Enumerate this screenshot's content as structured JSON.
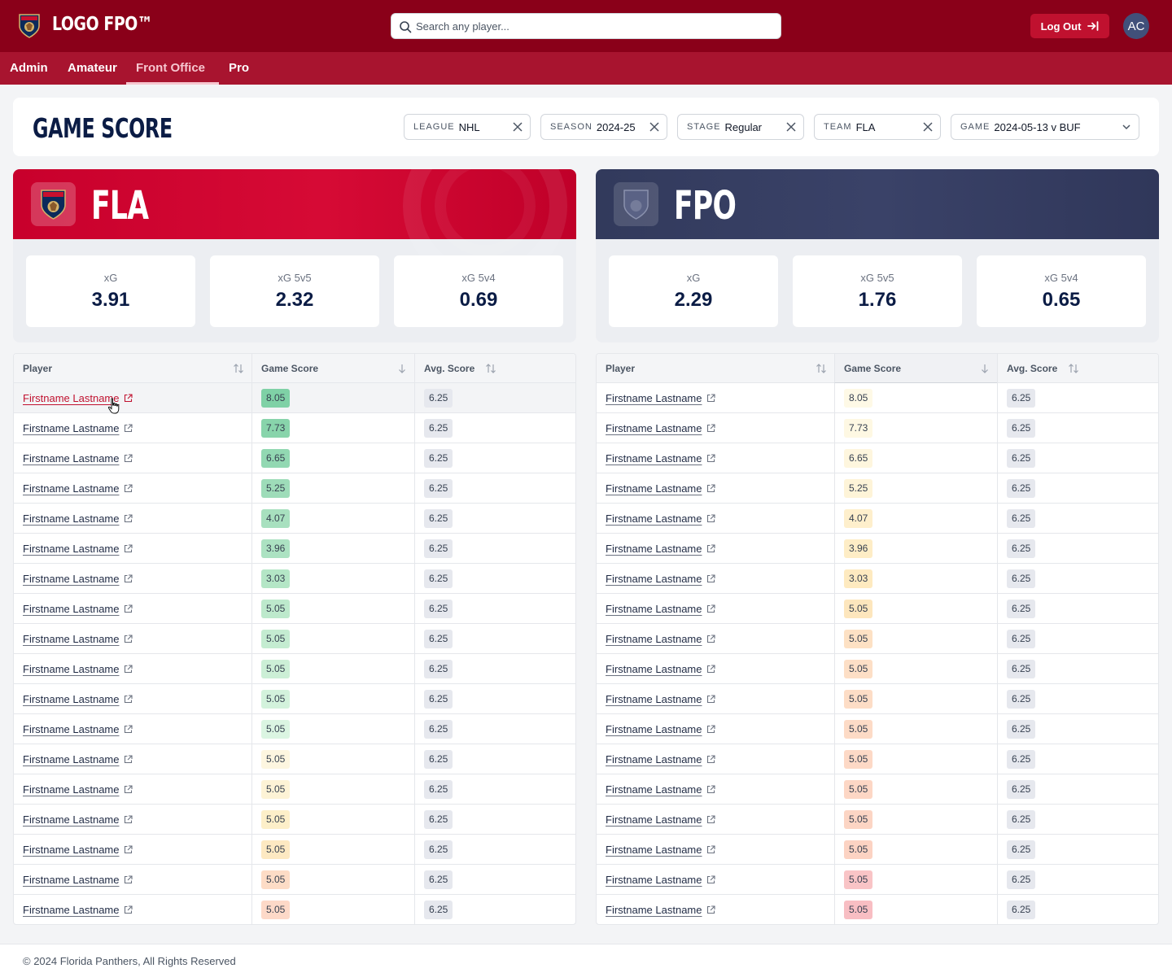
{
  "app": {
    "logo_text": "LOGO FPO™",
    "search_placeholder": "Search any player...",
    "logout_label": "Log Out",
    "avatar_initials": "AC"
  },
  "nav": {
    "items": [
      "Admin",
      "Amateur",
      "Front Office",
      "Pro"
    ],
    "active": "Front Office"
  },
  "page": {
    "title": "GAME SCORE",
    "filters": [
      {
        "label": "LEAGUE",
        "value": "NHL",
        "type": "clearable"
      },
      {
        "label": "SEASON",
        "value": "2024-25",
        "type": "clearable"
      },
      {
        "label": "STAGE",
        "value": "Regular",
        "type": "clearable"
      },
      {
        "label": "TEAM",
        "value": "FLA",
        "type": "clearable"
      },
      {
        "label": "GAME",
        "value": "2024-05-13 v BUF",
        "type": "dropdown"
      }
    ]
  },
  "teams": [
    {
      "name": "FLA",
      "theme": "red",
      "stats": [
        {
          "label": "xG",
          "value": "3.91"
        },
        {
          "label": "xG 5v5",
          "value": "2.32"
        },
        {
          "label": "xG 5v4",
          "value": "0.69"
        }
      ]
    },
    {
      "name": "FPO",
      "theme": "navy",
      "stats": [
        {
          "label": "xG",
          "value": "2.29"
        },
        {
          "label": "xG 5v5",
          "value": "1.76"
        },
        {
          "label": "xG 5v4",
          "value": "0.65"
        }
      ]
    }
  ],
  "table": {
    "columns": [
      "Player",
      "Game Score",
      "Avg. Score"
    ],
    "sorted_column": "Game Score",
    "left_rows": [
      {
        "player": "Firstname Lastname",
        "game_score": "8.05",
        "avg_score": "6.25",
        "color": "#7fd1a6"
      },
      {
        "player": "Firstname Lastname",
        "game_score": "7.73",
        "avg_score": "6.25",
        "color": "#88d4ab"
      },
      {
        "player": "Firstname Lastname",
        "game_score": "6.65",
        "avg_score": "6.25",
        "color": "#92d8b2"
      },
      {
        "player": "Firstname Lastname",
        "game_score": "5.25",
        "avg_score": "6.25",
        "color": "#9edcb9"
      },
      {
        "player": "Firstname Lastname",
        "game_score": "4.07",
        "avg_score": "6.25",
        "color": "#a8e0bf"
      },
      {
        "player": "Firstname Lastname",
        "game_score": "3.96",
        "avg_score": "6.25",
        "color": "#ace2c2"
      },
      {
        "player": "Firstname Lastname",
        "game_score": "3.03",
        "avg_score": "6.25",
        "color": "#b4e6c6"
      },
      {
        "player": "Firstname Lastname",
        "game_score": "5.05",
        "avg_score": "6.25",
        "color": "#bde9cc"
      },
      {
        "player": "Firstname Lastname",
        "game_score": "5.05",
        "avg_score": "6.25",
        "color": "#c4ecd1"
      },
      {
        "player": "Firstname Lastname",
        "game_score": "5.05",
        "avg_score": "6.25",
        "color": "#ccefd6"
      },
      {
        "player": "Firstname Lastname",
        "game_score": "5.05",
        "avg_score": "6.25",
        "color": "#d3f2dc"
      },
      {
        "player": "Firstname Lastname",
        "game_score": "5.05",
        "avg_score": "6.25",
        "color": "#dbf5e2"
      },
      {
        "player": "Firstname Lastname",
        "game_score": "5.05",
        "avg_score": "6.25",
        "color": "#fdf6e0"
      },
      {
        "player": "Firstname Lastname",
        "game_score": "5.05",
        "avg_score": "6.25",
        "color": "#fdf3d6"
      },
      {
        "player": "Firstname Lastname",
        "game_score": "5.05",
        "avg_score": "6.25",
        "color": "#fdefc9"
      },
      {
        "player": "Firstname Lastname",
        "game_score": "5.05",
        "avg_score": "6.25",
        "color": "#fde9c2"
      },
      {
        "player": "Firstname Lastname",
        "game_score": "5.05",
        "avg_score": "6.25",
        "color": "#fddcc6"
      },
      {
        "player": "Firstname Lastname",
        "game_score": "5.05",
        "avg_score": "6.25",
        "color": "#fdd9c8"
      }
    ],
    "right_rows": [
      {
        "player": "Firstname Lastname",
        "game_score": "8.05",
        "avg_score": "6.25",
        "color": "#fef9e6"
      },
      {
        "player": "Firstname Lastname",
        "game_score": "7.73",
        "avg_score": "6.25",
        "color": "#fef8e3"
      },
      {
        "player": "Firstname Lastname",
        "game_score": "6.65",
        "avg_score": "6.25",
        "color": "#fef6de"
      },
      {
        "player": "Firstname Lastname",
        "game_score": "5.25",
        "avg_score": "6.25",
        "color": "#fef4d8"
      },
      {
        "player": "Firstname Lastname",
        "game_score": "4.07",
        "avg_score": "6.25",
        "color": "#feefcc"
      },
      {
        "player": "Firstname Lastname",
        "game_score": "3.96",
        "avg_score": "6.25",
        "color": "#feedc6"
      },
      {
        "player": "Firstname Lastname",
        "game_score": "3.03",
        "avg_score": "6.25",
        "color": "#feeac0"
      },
      {
        "player": "Firstname Lastname",
        "game_score": "5.05",
        "avg_score": "6.25",
        "color": "#fde6bd"
      },
      {
        "player": "Firstname Lastname",
        "game_score": "5.05",
        "avg_score": "6.25",
        "color": "#fde1c4"
      },
      {
        "player": "Firstname Lastname",
        "game_score": "5.05",
        "avg_score": "6.25",
        "color": "#fddfc6"
      },
      {
        "player": "Firstname Lastname",
        "game_score": "5.05",
        "avg_score": "6.25",
        "color": "#fdddc6"
      },
      {
        "player": "Firstname Lastname",
        "game_score": "5.05",
        "avg_score": "6.25",
        "color": "#fddbc6"
      },
      {
        "player": "Firstname Lastname",
        "game_score": "5.05",
        "avg_score": "6.25",
        "color": "#fdd9c6"
      },
      {
        "player": "Firstname Lastname",
        "game_score": "5.05",
        "avg_score": "6.25",
        "color": "#fdd7c5"
      },
      {
        "player": "Firstname Lastname",
        "game_score": "5.05",
        "avg_score": "6.25",
        "color": "#fcd5c4"
      },
      {
        "player": "Firstname Lastname",
        "game_score": "5.05",
        "avg_score": "6.25",
        "color": "#fcd3c3"
      },
      {
        "player": "Firstname Lastname",
        "game_score": "5.05",
        "avg_score": "6.25",
        "color": "#f9c4c6"
      },
      {
        "player": "Firstname Lastname",
        "game_score": "5.05",
        "avg_score": "6.25",
        "color": "#f8bec3"
      }
    ]
  },
  "footer": {
    "copyright": "© 2024 Florida Panthers, All Rights Reserved"
  }
}
